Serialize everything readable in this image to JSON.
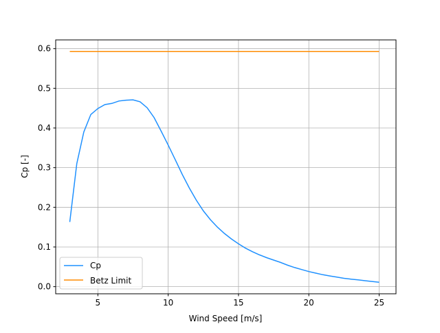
{
  "chart_data": {
    "type": "line",
    "title": "",
    "xlabel": "Wind Speed [m/s]",
    "ylabel": "Cp [-]",
    "xlim": [
      2,
      26.2
    ],
    "ylim": [
      -0.018,
      0.622
    ],
    "xticks": [
      5,
      10,
      15,
      20,
      25
    ],
    "yticks": [
      0.0,
      0.1,
      0.2,
      0.3,
      0.4,
      0.5,
      0.6
    ],
    "ytick_labels": [
      "0.0",
      "0.1",
      "0.2",
      "0.3",
      "0.4",
      "0.5",
      "0.6"
    ],
    "grid": true,
    "legend_placement": "lower-left",
    "series": [
      {
        "name": "Cp",
        "color": "#1e90ff",
        "x": [
          3,
          3.5,
          4,
          4.5,
          5,
          5.5,
          6,
          6.5,
          7,
          7.5,
          8,
          8.5,
          9,
          9.5,
          10,
          10.5,
          11,
          11.5,
          12,
          12.5,
          13,
          13.5,
          14,
          14.5,
          15,
          15.5,
          16,
          16.5,
          17,
          17.5,
          18,
          18.5,
          19,
          19.5,
          20,
          20.5,
          21,
          21.5,
          22,
          22.5,
          23,
          23.5,
          24,
          24.5,
          25
        ],
        "y": [
          0.163,
          0.31,
          0.39,
          0.434,
          0.449,
          0.459,
          0.462,
          0.468,
          0.47,
          0.471,
          0.466,
          0.451,
          0.426,
          0.392,
          0.357,
          0.32,
          0.283,
          0.249,
          0.218,
          0.191,
          0.169,
          0.15,
          0.134,
          0.12,
          0.108,
          0.097,
          0.088,
          0.08,
          0.073,
          0.067,
          0.061,
          0.054,
          0.048,
          0.043,
          0.038,
          0.034,
          0.03,
          0.027,
          0.024,
          0.021,
          0.019,
          0.017,
          0.015,
          0.013,
          0.011
        ]
      },
      {
        "name": "Betz Limit",
        "color": "#ff8c00",
        "x": [
          3,
          25
        ],
        "y": [
          0.593,
          0.593
        ]
      }
    ]
  }
}
